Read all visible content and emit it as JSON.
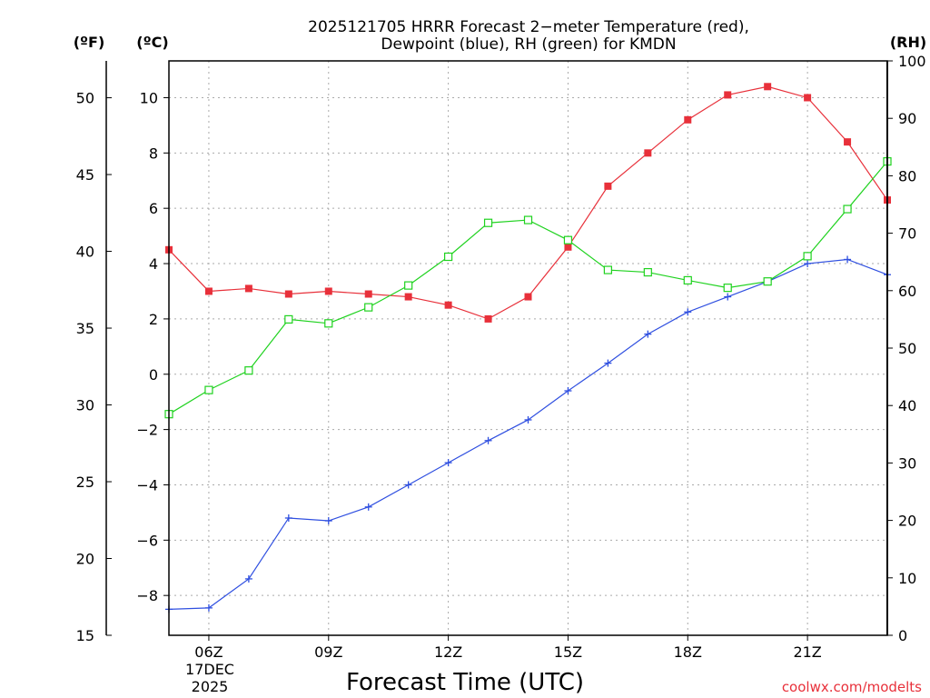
{
  "chart_data": {
    "type": "line",
    "title": [
      "2025121705 HRRR Forecast 2−meter Temperature (red),",
      "Dewpoint (blue), RH (green) for KMDN"
    ],
    "xlabel": "Forecast Time (UTC)",
    "x": [
      5,
      6,
      7,
      8,
      9,
      10,
      11,
      12,
      13,
      14,
      15,
      16,
      17,
      18,
      19,
      20,
      21,
      22,
      23
    ],
    "xlim": [
      5,
      23
    ],
    "x_ticks": [
      {
        "x": 6,
        "label": "06Z"
      },
      {
        "x": 9,
        "label": "09Z"
      },
      {
        "x": 12,
        "label": "12Z"
      },
      {
        "x": 15,
        "label": "15Z"
      },
      {
        "x": 18,
        "label": "18Z"
      },
      {
        "x": 21,
        "label": "21Z"
      }
    ],
    "date_label": [
      "17DEC",
      "2025"
    ],
    "axes": {
      "fahrenheit": {
        "unit": "(ºF)",
        "range": [
          15,
          52.4
        ],
        "ticks": [
          "15",
          "20",
          "25",
          "30",
          "35",
          "40",
          "45",
          "50"
        ]
      },
      "celsius": {
        "unit": "(ºC)",
        "range": [
          -9.44,
          11.33
        ],
        "ticks": [
          "−8",
          "−6",
          "−4",
          "−2",
          "0",
          "2",
          "4",
          "6",
          "8",
          "10"
        ]
      },
      "rh": {
        "unit": "(RH)",
        "range": [
          0,
          100
        ],
        "ticks": [
          "0",
          "10",
          "20",
          "30",
          "40",
          "50",
          "60",
          "70",
          "80",
          "90",
          "100"
        ]
      }
    },
    "series": [
      {
        "name": "Temperature",
        "unit": "C",
        "color": "#e8303a",
        "marker": "filled-square",
        "values": [
          4.5,
          3.0,
          3.1,
          2.9,
          3.0,
          2.9,
          2.8,
          2.5,
          2.0,
          2.8,
          4.6,
          6.8,
          8.0,
          9.2,
          10.1,
          10.4,
          10.0,
          8.4,
          6.3
        ]
      },
      {
        "name": "Dewpoint",
        "unit": "C",
        "color": "#2f4fe0",
        "marker": "plus",
        "values": [
          -8.5,
          -8.45,
          -7.4,
          -5.2,
          -5.3,
          -4.8,
          -4.0,
          -3.2,
          -2.4,
          -1.65,
          -0.6,
          0.4,
          1.45,
          2.25,
          2.8,
          3.35,
          4.0,
          4.15,
          3.6
        ]
      },
      {
        "name": "RH",
        "unit": "%",
        "color": "#1fd21f",
        "marker": "open-square",
        "values": [
          38.5,
          42.7,
          46.1,
          55.0,
          54.3,
          57.1,
          60.9,
          65.9,
          71.8,
          72.3,
          68.8,
          63.6,
          63.2,
          61.8,
          60.5,
          61.6,
          66.0,
          74.2,
          82.5
        ]
      }
    ]
  },
  "credit": "coolwx.com/modelts"
}
